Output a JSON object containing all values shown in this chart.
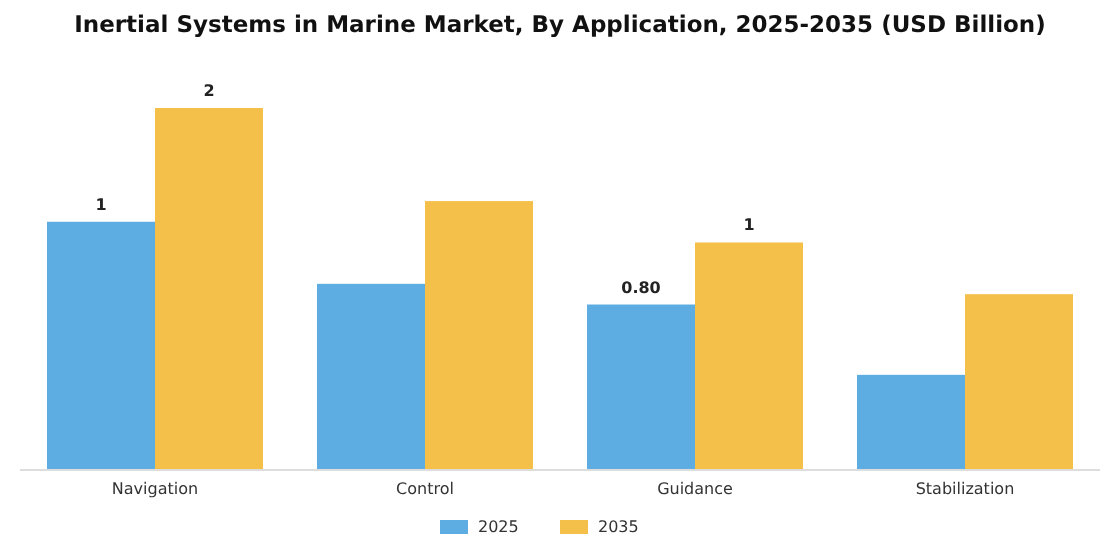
{
  "chart_data": {
    "type": "bar",
    "title": "Inertial Systems in Marine Market, By Application, 2025-2035 (USD Billion)",
    "tick_labels": "x",
    "categories": [
      "Navigation",
      "Control",
      "Guidance",
      "Stabilization"
    ],
    "series": [
      {
        "name": "2025",
        "color": "#5dade2",
        "values": [
          1.2,
          0.9,
          0.8,
          0.46
        ],
        "value_labels": [
          "1",
          null,
          "0.80",
          null
        ]
      },
      {
        "name": "2035",
        "color": "#f5c04a",
        "values": [
          1.75,
          1.3,
          1.1,
          0.85
        ],
        "value_labels": [
          "2",
          null,
          "1",
          null
        ]
      }
    ],
    "legend": "bottom"
  }
}
